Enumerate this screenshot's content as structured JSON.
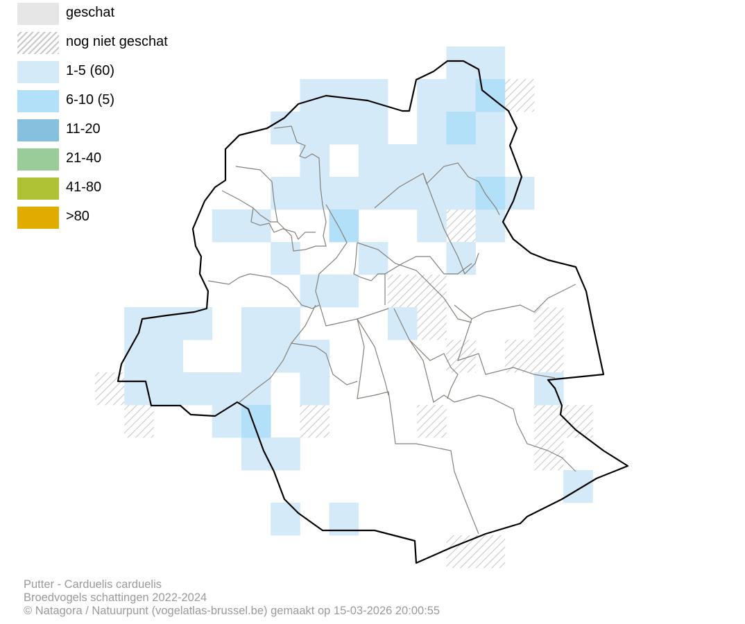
{
  "legend": {
    "items": [
      {
        "label": "geschat",
        "color": "#e6e6e6",
        "pattern": "solid"
      },
      {
        "label": "nog niet geschat",
        "color": "#c8c8c8",
        "pattern": "hatch"
      },
      {
        "label": "1-5 (60)",
        "color": "#d4eaf9",
        "pattern": "solid"
      },
      {
        "label": "6-10 (5)",
        "color": "#b2e0f8",
        "pattern": "solid"
      },
      {
        "label": "11-20",
        "color": "#87c0de",
        "pattern": "solid"
      },
      {
        "label": "21-40",
        "color": "#99cc99",
        "pattern": "solid"
      },
      {
        "label": "41-80",
        "color": "#afc234",
        "pattern": "solid"
      },
      {
        "label": ">80",
        "color": "#e0ac00",
        "pattern": "solid"
      }
    ]
  },
  "grid_cells": {
    "light": [
      [
        0,
        12
      ],
      [
        0,
        13
      ],
      [
        1,
        7
      ],
      [
        1,
        8
      ],
      [
        1,
        9
      ],
      [
        1,
        11
      ],
      [
        1,
        12
      ],
      [
        2,
        6
      ],
      [
        2,
        7
      ],
      [
        2,
        8
      ],
      [
        2,
        9
      ],
      [
        2,
        11
      ],
      [
        2,
        13
      ],
      [
        3,
        7
      ],
      [
        3,
        9
      ],
      [
        3,
        10
      ],
      [
        3,
        11
      ],
      [
        3,
        12
      ],
      [
        3,
        13
      ],
      [
        4,
        6
      ],
      [
        4,
        7
      ],
      [
        4,
        8
      ],
      [
        4,
        9
      ],
      [
        4,
        10
      ],
      [
        4,
        11
      ],
      [
        4,
        12
      ],
      [
        4,
        14
      ],
      [
        5,
        4
      ],
      [
        5,
        5
      ],
      [
        5,
        11
      ],
      [
        5,
        13
      ],
      [
        6,
        6
      ],
      [
        6,
        9
      ],
      [
        6,
        12
      ],
      [
        7,
        7
      ],
      [
        7,
        8
      ],
      [
        8,
        1
      ],
      [
        8,
        2
      ],
      [
        8,
        3
      ],
      [
        8,
        5
      ],
      [
        8,
        6
      ],
      [
        8,
        10
      ],
      [
        9,
        1
      ],
      [
        9,
        2
      ],
      [
        9,
        5
      ],
      [
        9,
        6
      ],
      [
        9,
        7
      ],
      [
        10,
        1
      ],
      [
        10,
        2
      ],
      [
        10,
        3
      ],
      [
        10,
        4
      ],
      [
        10,
        5
      ],
      [
        10,
        7
      ],
      [
        10,
        15
      ],
      [
        11,
        4
      ],
      [
        12,
        5
      ],
      [
        12,
        6
      ],
      [
        13,
        16
      ],
      [
        14,
        6
      ],
      [
        14,
        8
      ]
    ],
    "medium": [
      [
        1,
        13
      ],
      [
        2,
        12
      ],
      [
        4,
        13
      ],
      [
        5,
        8
      ],
      [
        11,
        5
      ]
    ],
    "hatch": [
      [
        1,
        14
      ],
      [
        5,
        12
      ],
      [
        7,
        10
      ],
      [
        7,
        11
      ],
      [
        8,
        11
      ],
      [
        8,
        15
      ],
      [
        9,
        12
      ],
      [
        9,
        14
      ],
      [
        9,
        15
      ],
      [
        10,
        0
      ],
      [
        11,
        1
      ],
      [
        11,
        7
      ],
      [
        11,
        11
      ],
      [
        11,
        15
      ],
      [
        11,
        16
      ],
      [
        12,
        15
      ],
      [
        15,
        12
      ],
      [
        15,
        13
      ]
    ]
  },
  "footer": {
    "line1": "Putter - Carduelis carduelis",
    "line2": "Broedvogels schattingen 2022-2024",
    "line3": "© Natagora / Natuurpunt (vogelatlas-brussel.be) gemaakt op 15-03-2026 20:00:55"
  }
}
